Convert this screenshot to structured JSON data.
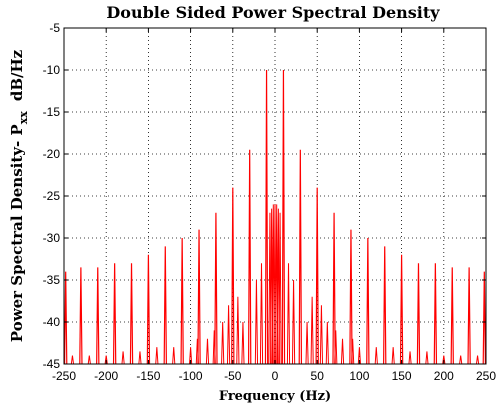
{
  "chart_data": {
    "type": "line",
    "title": "Double Sided Power Spectral Density",
    "xlabel": "Frequency (Hz)",
    "ylabel_main": "Power Spectral Density- P",
    "ylabel_sub": "xx",
    "ylabel_unit": "dB/Hz",
    "xlim": [
      -250,
      250
    ],
    "ylim": [
      -45,
      -5
    ],
    "xticks": [
      -250,
      -200,
      -150,
      -100,
      -50,
      0,
      50,
      100,
      150,
      200,
      250
    ],
    "yticks": [
      -5,
      -10,
      -15,
      -20,
      -25,
      -30,
      -35,
      -40,
      -45
    ],
    "grid": true,
    "line_color": "#ff0000",
    "floor_db": -45,
    "series": [
      {
        "peaks": [
          {
            "x": -248,
            "y": -34
          },
          {
            "x": -230,
            "y": -33.5
          },
          {
            "x": -210,
            "y": -33.5
          },
          {
            "x": -190,
            "y": -33
          },
          {
            "x": -170,
            "y": -33
          },
          {
            "x": -150,
            "y": -32
          },
          {
            "x": -130,
            "y": -31
          },
          {
            "x": -110,
            "y": -30
          },
          {
            "x": -90,
            "y": -29
          },
          {
            "x": -70,
            "y": -27
          },
          {
            "x": -50,
            "y": -24
          },
          {
            "x": -30,
            "y": -19.5
          },
          {
            "x": -10,
            "y": -10
          },
          {
            "x": 10,
            "y": -10
          },
          {
            "x": 30,
            "y": -19.5
          },
          {
            "x": 50,
            "y": -24
          },
          {
            "x": 70,
            "y": -27
          },
          {
            "x": 90,
            "y": -29
          },
          {
            "x": 110,
            "y": -30
          },
          {
            "x": 130,
            "y": -31
          },
          {
            "x": 150,
            "y": -32
          },
          {
            "x": 170,
            "y": -33
          },
          {
            "x": 190,
            "y": -33
          },
          {
            "x": 210,
            "y": -33.5
          },
          {
            "x": 230,
            "y": -33.5
          },
          {
            "x": 248,
            "y": -34
          }
        ],
        "minor_peaks": [
          {
            "x": -240,
            "y": -44
          },
          {
            "x": -220,
            "y": -44
          },
          {
            "x": -200,
            "y": -44
          },
          {
            "x": -180,
            "y": -43.5
          },
          {
            "x": -160,
            "y": -43.5
          },
          {
            "x": -140,
            "y": -43
          },
          {
            "x": -120,
            "y": -43
          },
          {
            "x": -100,
            "y": -43
          },
          {
            "x": -92,
            "y": -42
          },
          {
            "x": -80,
            "y": -42
          },
          {
            "x": -72,
            "y": -41
          },
          {
            "x": -62,
            "y": -40
          },
          {
            "x": -55,
            "y": -38
          },
          {
            "x": -44,
            "y": -37
          },
          {
            "x": -38,
            "y": -40
          },
          {
            "x": -22,
            "y": -35
          },
          {
            "x": -16,
            "y": -33
          },
          {
            "x": -6,
            "y": -27
          },
          {
            "x": -4,
            "y": -26.5
          },
          {
            "x": -2,
            "y": -26
          },
          {
            "x": 0,
            "y": -26
          },
          {
            "x": 2,
            "y": -26
          },
          {
            "x": 4,
            "y": -26.5
          },
          {
            "x": 6,
            "y": -27
          },
          {
            "x": 16,
            "y": -33
          },
          {
            "x": 22,
            "y": -35
          },
          {
            "x": 38,
            "y": -40
          },
          {
            "x": 44,
            "y": -37
          },
          {
            "x": 55,
            "y": -38
          },
          {
            "x": 62,
            "y": -40
          },
          {
            "x": 72,
            "y": -41
          },
          {
            "x": 80,
            "y": -42
          },
          {
            "x": 92,
            "y": -42
          },
          {
            "x": 100,
            "y": -43
          },
          {
            "x": 120,
            "y": -43
          },
          {
            "x": 140,
            "y": -43
          },
          {
            "x": 160,
            "y": -43.5
          },
          {
            "x": 180,
            "y": -43.5
          },
          {
            "x": 200,
            "y": -44
          },
          {
            "x": 220,
            "y": -44
          },
          {
            "x": 240,
            "y": -44
          }
        ]
      }
    ]
  }
}
